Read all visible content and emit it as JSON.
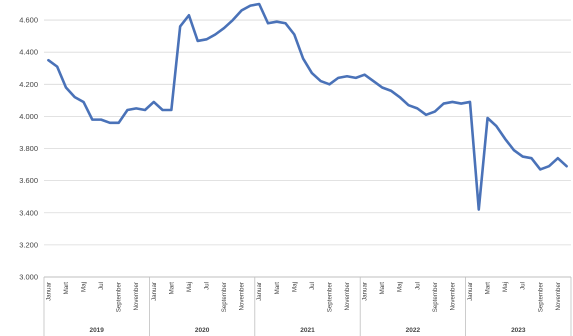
{
  "chart_data": {
    "type": "line",
    "title": "",
    "xlabel": "",
    "ylabel": "",
    "ylim": [
      3000,
      4700
    ],
    "y_ticks": [
      3000,
      3200,
      3400,
      3600,
      3800,
      4000,
      4200,
      4400,
      4600
    ],
    "y_tick_labels": [
      "3.000",
      "3.200",
      "3.400",
      "3.600",
      "3.800",
      "4.000",
      "4.200",
      "4.400",
      "4.600"
    ],
    "grid": "horizontal",
    "line_color": "#4a72b8",
    "grid_color": "#d9d9d9",
    "years": [
      "2019",
      "2020",
      "2021",
      "2022",
      "2023"
    ],
    "month_labels": [
      "Januar",
      "Mart",
      "Maj",
      "Jul",
      "September",
      "November"
    ],
    "x": [
      "2019-01",
      "2019-02",
      "2019-03",
      "2019-04",
      "2019-05",
      "2019-06",
      "2019-07",
      "2019-08",
      "2019-09",
      "2019-10",
      "2019-11",
      "2019-12",
      "2020-01",
      "2020-02",
      "2020-03",
      "2020-04",
      "2020-05",
      "2020-06",
      "2020-07",
      "2020-08",
      "2020-09",
      "2020-10",
      "2020-11",
      "2020-12",
      "2021-01",
      "2021-02",
      "2021-03",
      "2021-04",
      "2021-05",
      "2021-06",
      "2021-07",
      "2021-08",
      "2021-09",
      "2021-10",
      "2021-11",
      "2021-12",
      "2022-01",
      "2022-02",
      "2022-03",
      "2022-04",
      "2022-05",
      "2022-06",
      "2022-07",
      "2022-08",
      "2022-09",
      "2022-10",
      "2022-11",
      "2022-12",
      "2023-01",
      "2023-02",
      "2023-03",
      "2023-04",
      "2023-05",
      "2023-06",
      "2023-07",
      "2023-08",
      "2023-09",
      "2023-10",
      "2023-11",
      "2023-12"
    ],
    "series": [
      {
        "values": [
          4350,
          4310,
          4180,
          4120,
          4090,
          3980,
          3980,
          3960,
          3960,
          4040,
          4050,
          4040,
          4090,
          4040,
          4040,
          4560,
          4630,
          4470,
          4480,
          4510,
          4550,
          4600,
          4660,
          4690,
          4700,
          4580,
          4590,
          4580,
          4510,
          4360,
          4270,
          4220,
          4200,
          4240,
          4250,
          4240,
          4260,
          4220,
          4180,
          4160,
          4120,
          4070,
          4050,
          4010,
          4030,
          4080,
          4090,
          4080,
          4090,
          3420,
          3990,
          3940,
          3860,
          3790,
          3750,
          3740,
          3670,
          3690,
          3740,
          3690
        ]
      }
    ]
  }
}
